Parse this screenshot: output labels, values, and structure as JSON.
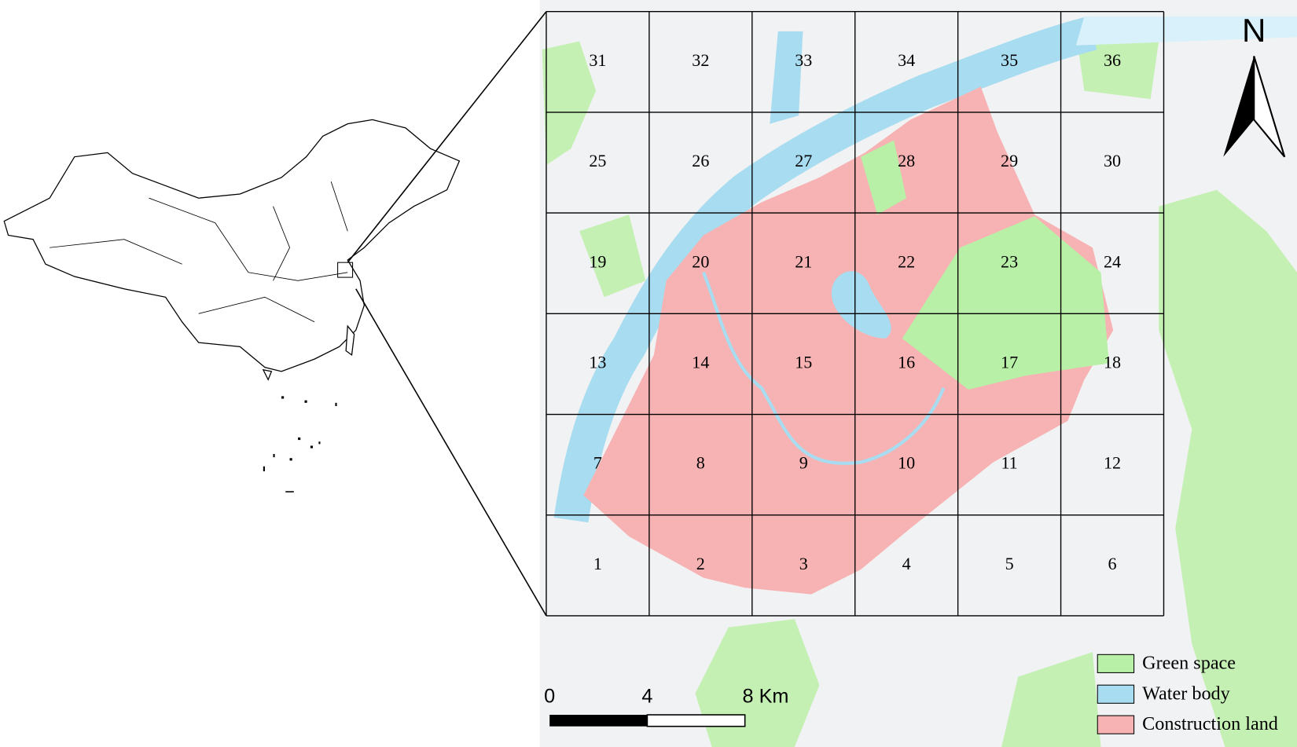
{
  "north": "N",
  "cells": [
    "1",
    "2",
    "3",
    "4",
    "5",
    "6",
    "7",
    "8",
    "9",
    "10",
    "11",
    "12",
    "13",
    "14",
    "15",
    "16",
    "17",
    "18",
    "19",
    "20",
    "21",
    "22",
    "23",
    "24",
    "25",
    "26",
    "27",
    "28",
    "29",
    "30",
    "31",
    "32",
    "33",
    "34",
    "35",
    "36"
  ],
  "scale_labels": [
    "0",
    "4",
    "8 Km"
  ],
  "legend": [
    {
      "label": "Green space",
      "color": "#b7f0a6"
    },
    {
      "label": "Water body",
      "color": "#a8dcf0"
    },
    {
      "label": "Construction land",
      "color": "#f7b3b3"
    }
  ]
}
